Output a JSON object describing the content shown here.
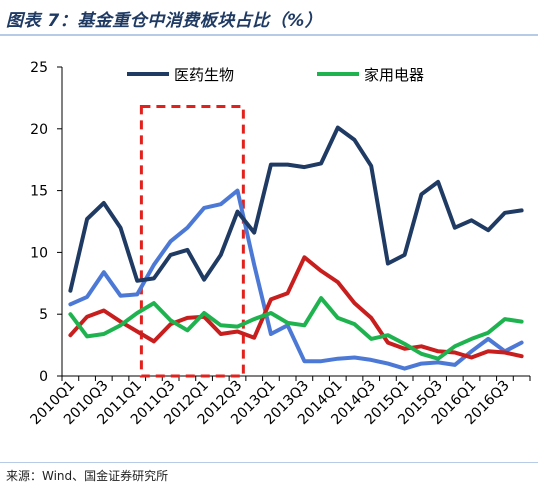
{
  "title": "图表 7：基金重仓中消费板块占比（%）",
  "source": "来源：Wind、国金证券研究所",
  "chart_data": {
    "type": "line",
    "x": [
      "2010Q1",
      "2010Q2",
      "2010Q3",
      "2010Q4",
      "2011Q1",
      "2011Q2",
      "2011Q3",
      "2011Q4",
      "2012Q1",
      "2012Q2",
      "2012Q3",
      "2012Q4",
      "2013Q1",
      "2013Q2",
      "2013Q3",
      "2013Q4",
      "2014Q1",
      "2014Q2",
      "2014Q3",
      "2014Q4",
      "2015Q1",
      "2015Q2",
      "2015Q3",
      "2015Q4",
      "2016Q1",
      "2016Q2",
      "2016Q3",
      "2016Q4"
    ],
    "x_tick_labels": [
      "2010Q1",
      "2010Q3",
      "2011Q1",
      "2011Q3",
      "2012Q1",
      "2012Q3",
      "2013Q1",
      "2013Q3",
      "2014Q1",
      "2014Q3",
      "2015Q1",
      "2015Q3",
      "2016Q1",
      "2016Q3"
    ],
    "ylim": [
      0,
      25
    ],
    "yticks": [
      "0",
      "5",
      "10",
      "15",
      "20",
      "25"
    ],
    "grid": false,
    "legend_position": "top",
    "series": [
      {
        "name": "医药生物",
        "color": "#1f3a63",
        "values": [
          6.9,
          12.7,
          14.0,
          12.0,
          7.7,
          7.9,
          9.8,
          10.2,
          7.8,
          9.8,
          13.3,
          11.6,
          17.1,
          17.1,
          16.9,
          17.2,
          20.1,
          19.1,
          17.0,
          9.1,
          9.8,
          14.7,
          15.7,
          12.0,
          12.6,
          11.8,
          13.2,
          13.4
        ]
      },
      {
        "name": "家用电器",
        "color": "#1fb350",
        "values": [
          5.0,
          3.2,
          3.4,
          4.1,
          5.1,
          5.9,
          4.5,
          3.7,
          5.1,
          4.1,
          4.0,
          4.6,
          5.1,
          4.3,
          4.1,
          6.3,
          4.7,
          4.2,
          3.0,
          3.3,
          2.6,
          1.8,
          1.4,
          2.4,
          3.0,
          3.5,
          4.6,
          4.4
        ]
      },
      {
        "color": "#c81e1e",
        "values": [
          3.3,
          4.8,
          5.3,
          4.4,
          3.6,
          2.8,
          4.2,
          4.7,
          4.8,
          3.4,
          3.6,
          3.1,
          6.2,
          6.7,
          9.6,
          8.5,
          7.6,
          5.9,
          4.7,
          2.7,
          2.2,
          2.4,
          2.0,
          1.9,
          1.5,
          2.0,
          1.9,
          1.6
        ]
      },
      {
        "color": "#4d79d6",
        "values": [
          5.8,
          6.4,
          8.4,
          6.5,
          6.6,
          9.0,
          10.9,
          12.0,
          13.6,
          13.9,
          15.0,
          9.0,
          3.4,
          4.1,
          1.2,
          1.2,
          1.4,
          1.5,
          1.3,
          1.0,
          0.6,
          1.0,
          1.1,
          0.9,
          2.0,
          3.0,
          2.0,
          2.7
        ]
      }
    ],
    "highlight_box": {
      "from": "2011Q2",
      "to": "2012Q3",
      "color": "#e3211c"
    }
  }
}
